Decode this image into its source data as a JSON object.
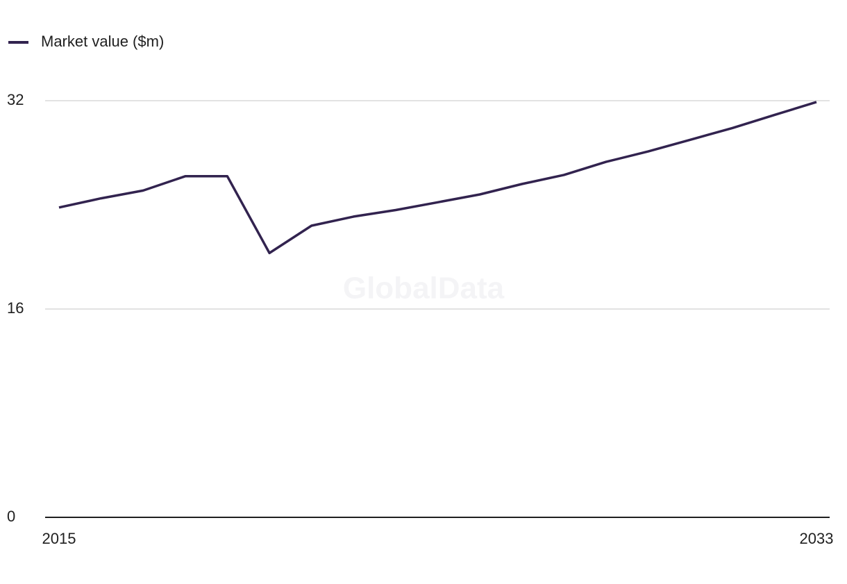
{
  "chart_data": {
    "type": "line",
    "watermark": "GlobalData",
    "categories": [
      "2015",
      null,
      null,
      null,
      null,
      null,
      null,
      null,
      null,
      null,
      null,
      null,
      null,
      null,
      null,
      null,
      null,
      null,
      "2033"
    ],
    "series": [
      {
        "name": "Market value ($m)",
        "color": "#32234f",
        "values": [
          23.8,
          24.5,
          25.1,
          26.2,
          26.2,
          20.3,
          22.4,
          23.1,
          23.6,
          24.2,
          24.8,
          25.6,
          26.3,
          27.3,
          28.1,
          29.0,
          29.9,
          30.9,
          31.9
        ]
      }
    ],
    "ylim": [
      0,
      32
    ],
    "yticks": [
      0,
      16,
      32
    ],
    "grid": true,
    "legend": "top-left"
  }
}
